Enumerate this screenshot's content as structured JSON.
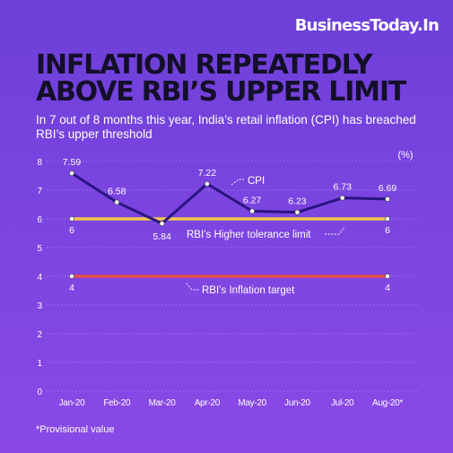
{
  "brand": "BusinessToday.In",
  "headline": {
    "line1": "INFLATION REPEATEDLY",
    "line2": "ABOVE RBI’S UPPER LIMIT"
  },
  "subhead": "In 7 out of 8 months this year, India’s retail inflation (CPI) has breached RBI’s upper threshold",
  "footnote": "*Provisional value",
  "colors": {
    "cpi_line": "#2a1480",
    "upper_limit": "#f3c64a",
    "target": "#e2504a",
    "marker_fill": "#ffffff"
  },
  "chart_data": {
    "type": "line",
    "categories": [
      "Jan-20",
      "Feb-20",
      "Mar-20",
      "Apr-20",
      "May-20",
      "Jun-20",
      "Jul-20",
      "Aug-20*"
    ],
    "ylim": [
      0,
      8
    ],
    "yticks": [
      "0",
      "1",
      "2",
      "3",
      "4",
      "5",
      "6",
      "7",
      "8"
    ],
    "unit_label": "(%)",
    "series": [
      {
        "name": "CPI",
        "values": [
          7.59,
          6.58,
          5.84,
          7.22,
          6.27,
          6.23,
          6.73,
          6.69
        ],
        "labels": [
          "7.59",
          "6.58",
          "5.84",
          "7.22",
          "6.27",
          "6.23",
          "6.73",
          "6.69"
        ]
      },
      {
        "name": "RBI’s Higher tolerance limit",
        "values": [
          6,
          6,
          6,
          6,
          6,
          6,
          6,
          6
        ],
        "end_labels": [
          "6",
          "6"
        ]
      },
      {
        "name": "RBI’s Inflation target",
        "values": [
          4,
          4,
          4,
          4,
          4,
          4,
          4,
          4
        ],
        "end_labels": [
          "4",
          "4"
        ]
      }
    ],
    "grid": true,
    "legend": "inline annotations"
  }
}
